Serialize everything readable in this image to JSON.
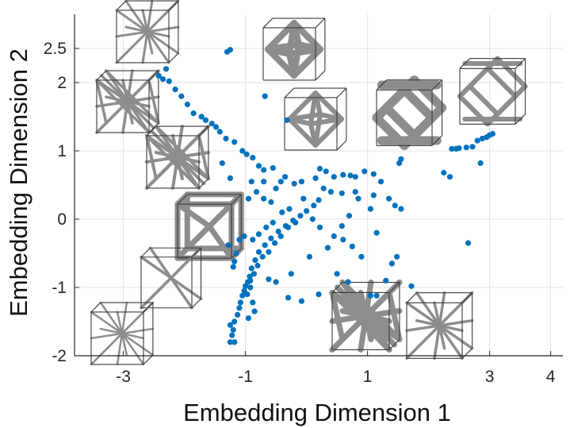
{
  "chart_data": {
    "type": "scatter",
    "xlabel": "Embedding Dimension 1",
    "ylabel": "Embedding Dimension 2",
    "xlim": [
      -3.8,
      4.2
    ],
    "ylim": [
      -2.0,
      3.0
    ],
    "x_ticks": [
      -3,
      -1,
      1,
      3,
      4
    ],
    "y_ticks": [
      -2,
      -1,
      0,
      1,
      2,
      2.5
    ],
    "grid": true,
    "colors": {
      "points": "#0072BD",
      "struts": "#8d8d8d",
      "box": "#3a3a3a"
    },
    "series": [
      {
        "points": [
          [
            -1.3,
            2.45
          ],
          [
            -1.25,
            2.48
          ],
          [
            -2.42,
            2.1
          ],
          [
            -2.3,
            2.2
          ],
          [
            -2.35,
            2.05
          ],
          [
            -2.25,
            2.02
          ],
          [
            -2.15,
            1.9
          ],
          [
            -2.05,
            1.8
          ],
          [
            -1.95,
            1.68
          ],
          [
            -1.85,
            1.55
          ],
          [
            -1.72,
            1.5
          ],
          [
            -1.65,
            1.45
          ],
          [
            -1.55,
            1.4
          ],
          [
            -1.48,
            1.35
          ],
          [
            -1.42,
            1.28
          ],
          [
            -1.32,
            1.18
          ],
          [
            -1.18,
            1.13
          ],
          [
            -1.05,
            1.0
          ],
          [
            -0.98,
            0.95
          ],
          [
            -0.88,
            0.9
          ],
          [
            -0.78,
            0.78
          ],
          [
            -0.7,
            0.72
          ],
          [
            -0.55,
            0.75
          ],
          [
            -0.68,
            1.8
          ],
          [
            -0.32,
            1.45
          ],
          [
            -1.38,
            0.82
          ],
          [
            -1.25,
            0.6
          ],
          [
            -0.9,
            0.55
          ],
          [
            -0.82,
            0.4
          ],
          [
            -0.7,
            0.3
          ],
          [
            -0.58,
            0.25
          ],
          [
            -0.5,
            0.45
          ],
          [
            -0.42,
            0.55
          ],
          [
            -0.35,
            0.62
          ],
          [
            -0.2,
            0.52
          ],
          [
            -0.08,
            0.55
          ],
          [
            0.15,
            0.6
          ],
          [
            0.32,
            0.7
          ],
          [
            0.45,
            0.62
          ],
          [
            0.6,
            0.65
          ],
          [
            0.72,
            0.64
          ],
          [
            0.8,
            0.62
          ],
          [
            0.95,
            0.7
          ],
          [
            1.1,
            0.66
          ],
          [
            1.22,
            0.55
          ],
          [
            0.28,
            0.45
          ],
          [
            0.4,
            0.4
          ],
          [
            0.58,
            0.38
          ],
          [
            0.8,
            0.4
          ],
          [
            1.1,
            0.35
          ],
          [
            1.35,
            0.3
          ],
          [
            1.45,
            0.2
          ],
          [
            1.55,
            0.15
          ],
          [
            0.2,
            0.28
          ],
          [
            0.12,
            0.2
          ],
          [
            0.0,
            0.12
          ],
          [
            -0.1,
            0.05
          ],
          [
            -0.22,
            -0.02
          ],
          [
            -0.34,
            -0.1
          ],
          [
            -0.46,
            -0.18
          ],
          [
            -0.58,
            -0.28
          ],
          [
            -0.68,
            -0.38
          ],
          [
            -0.78,
            -0.48
          ],
          [
            -0.84,
            -0.6
          ],
          [
            -0.9,
            -0.72
          ],
          [
            -0.93,
            -0.84
          ],
          [
            -0.96,
            -0.92
          ],
          [
            -1.0,
            -0.98
          ],
          [
            -1.02,
            -1.05
          ],
          [
            -1.05,
            -1.12
          ],
          [
            -1.08,
            -1.22
          ],
          [
            -1.1,
            -1.3
          ],
          [
            -1.13,
            -1.4
          ],
          [
            -1.18,
            -1.5
          ],
          [
            -1.2,
            -1.62
          ],
          [
            -1.22,
            -1.7
          ],
          [
            -1.25,
            -1.8
          ],
          [
            -1.18,
            -1.8
          ],
          [
            -0.3,
            -0.12
          ],
          [
            -0.42,
            -0.25
          ],
          [
            -0.52,
            -0.35
          ],
          [
            -0.62,
            -0.48
          ],
          [
            -0.72,
            -0.55
          ],
          [
            -0.8,
            -0.68
          ],
          [
            -0.86,
            -0.8
          ],
          [
            -0.92,
            -0.9
          ],
          [
            -0.18,
            -0.05
          ],
          [
            -0.28,
            0.15
          ],
          [
            -0.4,
            0.1
          ],
          [
            -0.55,
            -0.05
          ],
          [
            -0.66,
            -0.12
          ],
          [
            -0.78,
            -0.22
          ],
          [
            -0.88,
            -0.3
          ],
          [
            -1.02,
            -0.25
          ],
          [
            -1.1,
            -0.3
          ],
          [
            -1.28,
            -0.38
          ],
          [
            -1.15,
            -0.5
          ],
          [
            -1.18,
            -0.62
          ],
          [
            -0.05,
            0.3
          ],
          [
            0.1,
            0.0
          ],
          [
            0.22,
            -0.12
          ],
          [
            0.45,
            -0.25
          ],
          [
            0.6,
            -0.3
          ],
          [
            0.75,
            -0.4
          ],
          [
            0.9,
            -0.55
          ],
          [
            0.7,
            0.05
          ],
          [
            0.58,
            -0.1
          ],
          [
            0.35,
            -0.42
          ],
          [
            0.05,
            -0.55
          ],
          [
            -0.25,
            -0.8
          ],
          [
            -0.5,
            -0.92
          ],
          [
            -0.3,
            -1.15
          ],
          [
            -0.08,
            -1.2
          ],
          [
            0.2,
            -1.1
          ],
          [
            0.5,
            -0.8
          ],
          [
            0.68,
            -0.92
          ],
          [
            1.15,
            -0.2
          ],
          [
            1.4,
            -0.65
          ],
          [
            1.48,
            -0.55
          ],
          [
            1.3,
            -0.9
          ],
          [
            1.72,
            -0.98
          ],
          [
            1.15,
            -1.12
          ],
          [
            1.05,
            -1.12
          ],
          [
            0.85,
            0.3
          ],
          [
            1.05,
            0.15
          ],
          [
            0.22,
            0.74
          ],
          [
            -0.7,
            0.55
          ],
          [
            -0.95,
            0.3
          ],
          [
            -1.2,
            -0.7
          ],
          [
            -0.62,
            -0.88
          ],
          [
            -0.92,
            -1.0
          ],
          [
            -0.97,
            -1.1
          ],
          [
            -0.88,
            -1.22
          ],
          [
            -0.85,
            -1.35
          ],
          [
            -0.95,
            -1.45
          ],
          [
            -1.25,
            -1.55
          ],
          [
            1.55,
            0.88
          ],
          [
            1.52,
            0.82
          ],
          [
            2.38,
            1.03
          ],
          [
            2.45,
            1.03
          ],
          [
            2.5,
            1.04
          ],
          [
            2.62,
            1.05
          ],
          [
            2.72,
            1.06
          ],
          [
            2.88,
            1.18
          ],
          [
            2.95,
            1.2
          ],
          [
            3.0,
            1.23
          ],
          [
            3.05,
            1.25
          ],
          [
            2.8,
            1.15
          ],
          [
            2.85,
            0.82
          ],
          [
            2.25,
            0.68
          ],
          [
            2.35,
            0.62
          ],
          [
            2.65,
            -0.35
          ]
        ]
      }
    ]
  }
}
